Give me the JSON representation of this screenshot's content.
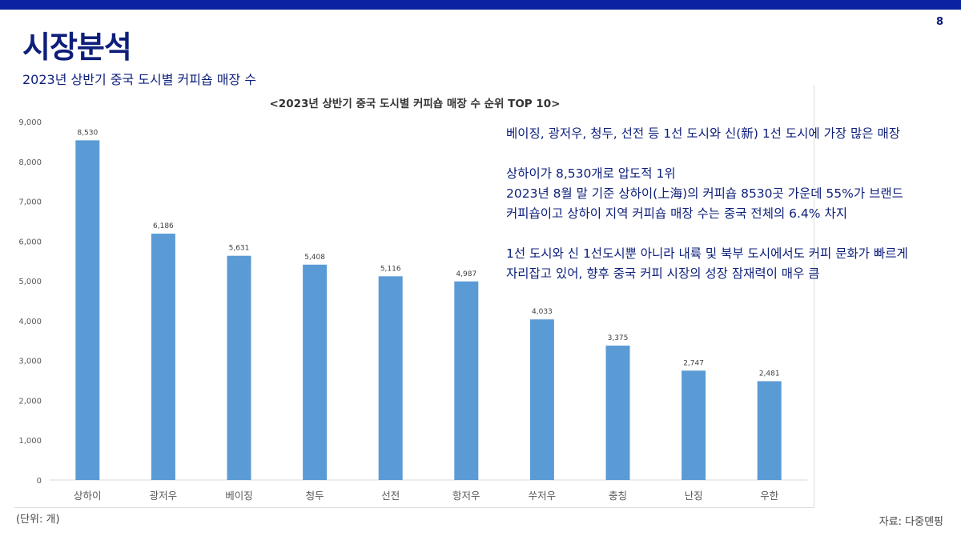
{
  "page_number": "8",
  "title": "시장분석",
  "subtitle": "2023년 상반기 중국 도시별 커피숍 매장 수",
  "notes": [
    "베이징, 광저우, 청두, 선전 등 1선 도시와 신(新) 1선 도시에 가장 많은 매장",
    "",
    "상하이가 8,530개로 압도적 1위",
    "2023년 8월 말 기준 상하이(上海)의 커피숍 8530곳 가운데 55%가 브랜드",
    "커피숍이고 상하이 지역 커피숍 매장 수는 중국 전체의 6.4% 차지",
    "",
    "1선 도시와 신 1선도시뿐 아니라 내륙 및 북부 도시에서도 커피 문화가 빠르게",
    "자리잡고 있어, 향후 중국 커피 시장의 성장 잠재력이 매우 큼"
  ],
  "unit_note": "(단위: 개)",
  "source": "자료: 다중뎬핑",
  "chart_data": {
    "type": "bar",
    "title": "<2023년 상반기 중국 도시별 커피숍 매장 수 순위 TOP 10>",
    "categories": [
      "상하이",
      "광저우",
      "베이징",
      "청두",
      "선전",
      "항저우",
      "쑤저우",
      "충칭",
      "난징",
      "우한"
    ],
    "values": [
      8530,
      6186,
      5631,
      5408,
      5116,
      4987,
      4033,
      3375,
      2747,
      2481
    ],
    "data_labels": [
      "8,530",
      "6,186",
      "5,631",
      "5,408",
      "5,116",
      "4,987",
      "4,033",
      "3,375",
      "2,747",
      "2,481"
    ],
    "ylim": [
      0,
      9000
    ],
    "yticks": [
      0,
      1000,
      2000,
      3000,
      4000,
      5000,
      6000,
      7000,
      8000,
      9000
    ],
    "ytick_labels": [
      "0",
      "1,000",
      "2,000",
      "3,000",
      "4,000",
      "5,000",
      "6,000",
      "7,000",
      "8,000",
      "9,000"
    ],
    "grid": false,
    "bar_color": "#5b9bd5"
  }
}
